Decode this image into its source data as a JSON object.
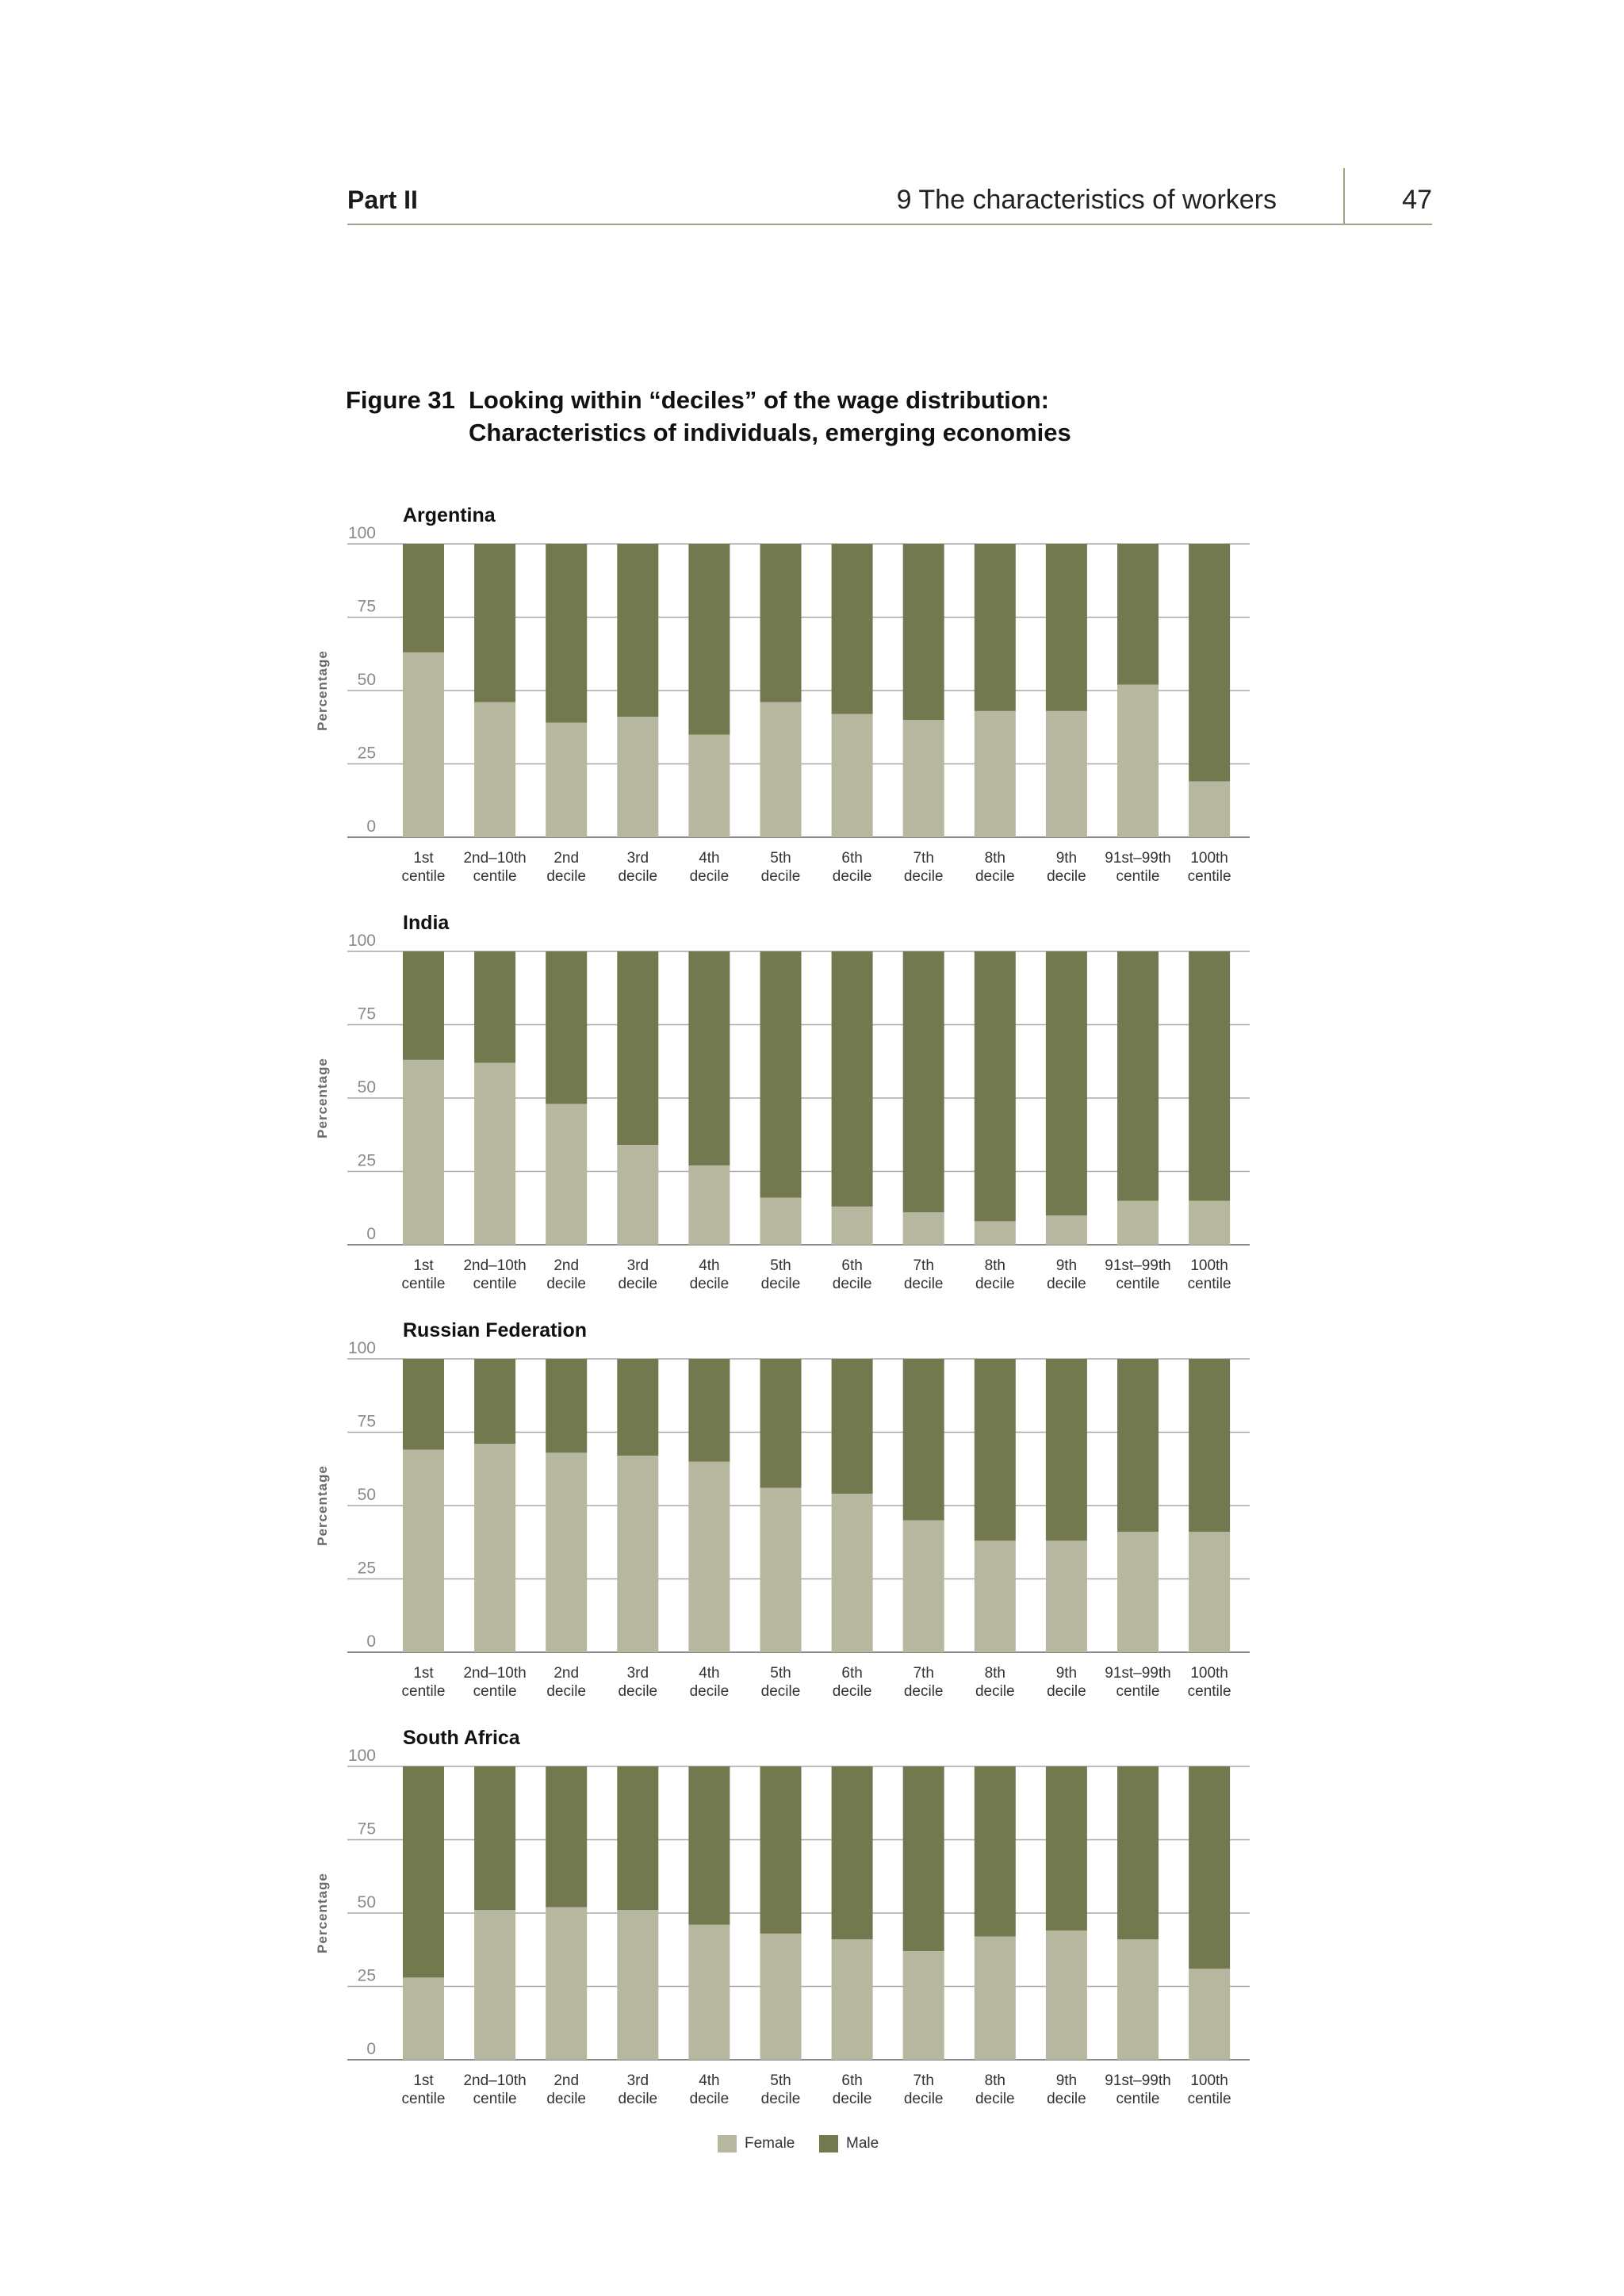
{
  "header": {
    "part": "Part II",
    "chapter": "9  The characteristics of workers",
    "page_number": "47"
  },
  "figure": {
    "label": "Figure 31",
    "title_line1": "Looking within “deciles” of the wage distribution:",
    "title_line2": "Characteristics of individuals, emerging economies"
  },
  "legend": {
    "female": "Female",
    "male": "Male"
  },
  "colors": {
    "female": "#b7b7a0",
    "male": "#72794e",
    "grid": "#a8a8a8",
    "axis": "#8a8a8a"
  },
  "chart_data": {
    "type": "bar",
    "stacked": true,
    "ylabel": "Percentage",
    "ylim": [
      0,
      100
    ],
    "yticks": [
      0,
      25,
      50,
      75,
      100
    ],
    "grid": true,
    "legend_position": "bottom-center",
    "categories": [
      [
        "1st",
        "centile"
      ],
      [
        "2nd–10th",
        "centile"
      ],
      [
        "2nd",
        "decile"
      ],
      [
        "3rd",
        "decile"
      ],
      [
        "4th",
        "decile"
      ],
      [
        "5th",
        "decile"
      ],
      [
        "6th",
        "decile"
      ],
      [
        "7th",
        "decile"
      ],
      [
        "8th",
        "decile"
      ],
      [
        "9th",
        "decile"
      ],
      [
        "91st–99th",
        "centile"
      ],
      [
        "100th",
        "centile"
      ]
    ],
    "panels": [
      {
        "title": "Argentina",
        "series": [
          {
            "name": "Female",
            "values": [
              63,
              46,
              39,
              41,
              35,
              46,
              42,
              40,
              43,
              43,
              52,
              19
            ]
          },
          {
            "name": "Male",
            "values": [
              37,
              54,
              61,
              59,
              65,
              54,
              58,
              60,
              57,
              57,
              48,
              81
            ]
          }
        ]
      },
      {
        "title": "India",
        "series": [
          {
            "name": "Female",
            "values": [
              63,
              62,
              48,
              34,
              27,
              16,
              13,
              11,
              8,
              10,
              15,
              15
            ]
          },
          {
            "name": "Male",
            "values": [
              37,
              38,
              52,
              66,
              73,
              84,
              87,
              89,
              92,
              90,
              85,
              85
            ]
          }
        ]
      },
      {
        "title": "Russian Federation",
        "series": [
          {
            "name": "Female",
            "values": [
              69,
              71,
              68,
              67,
              65,
              56,
              54,
              45,
              38,
              38,
              41,
              41
            ]
          },
          {
            "name": "Male",
            "values": [
              31,
              29,
              32,
              33,
              35,
              44,
              46,
              55,
              62,
              62,
              59,
              59
            ]
          }
        ]
      },
      {
        "title": "South Africa",
        "series": [
          {
            "name": "Female",
            "values": [
              28,
              51,
              52,
              51,
              46,
              43,
              41,
              37,
              42,
              44,
              41,
              31
            ]
          },
          {
            "name": "Male",
            "values": [
              72,
              49,
              48,
              49,
              54,
              57,
              59,
              63,
              58,
              56,
              59,
              69
            ]
          }
        ]
      }
    ]
  }
}
